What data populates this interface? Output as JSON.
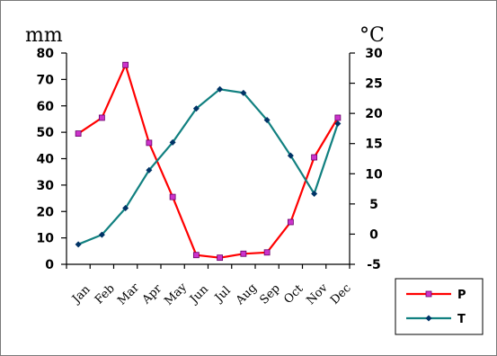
{
  "chart_data": {
    "type": "line",
    "title": "",
    "y_left_unit": "mm",
    "y_right_unit": "°C",
    "categories": [
      "Jan",
      "Feb",
      "Mar",
      "Apr",
      "May",
      "Jun",
      "Jul",
      "Aug",
      "Sep",
      "Oct",
      "Nov",
      "Dec"
    ],
    "y_left_ticks": [
      0,
      10,
      20,
      30,
      40,
      50,
      60,
      70,
      80
    ],
    "y_right_ticks": [
      -5,
      0,
      5,
      10,
      15,
      20,
      25,
      30
    ],
    "y_left_lim": [
      0,
      80
    ],
    "y_right_lim": [
      -5,
      30
    ],
    "grid": false,
    "legend_position": "bottom-right",
    "series": [
      {
        "name": "P",
        "axis": "left",
        "color": "#ff0000",
        "marker": "square",
        "marker_color": "#cc33cc",
        "values": [
          49.5,
          55.5,
          75.5,
          46,
          25.5,
          3.5,
          2.5,
          4,
          4.5,
          16,
          40.5,
          55.5
        ]
      },
      {
        "name": "T",
        "axis": "right",
        "color": "#118080",
        "marker": "diamond",
        "marker_color": "#003366",
        "values": [
          -1.7,
          -0.1,
          4.3,
          10.6,
          15.2,
          20.8,
          24.0,
          23.4,
          18.9,
          13.0,
          6.7,
          18.3
        ]
      }
    ]
  }
}
